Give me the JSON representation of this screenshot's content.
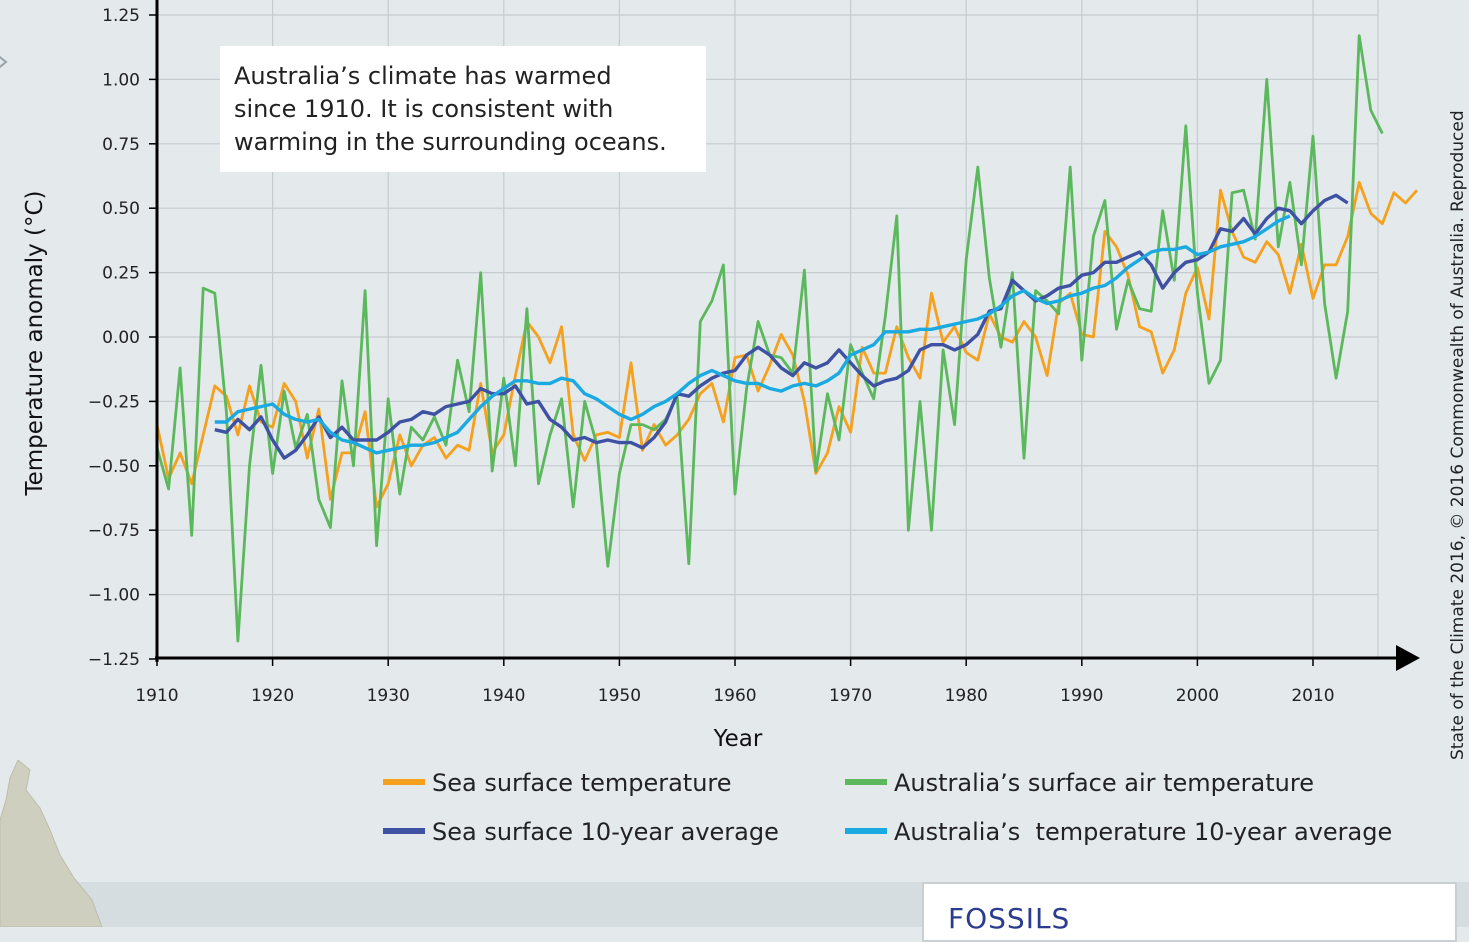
{
  "chart_data": {
    "type": "line",
    "title": "",
    "xlabel": "Year",
    "ylabel": "Temperature anomaly (°C)",
    "xlim": [
      1910,
      2016
    ],
    "ylim": [
      -1.25,
      1.25
    ],
    "x_ticks": [
      1910,
      1920,
      1930,
      1940,
      1950,
      1960,
      1970,
      1980,
      1990,
      2000,
      2010
    ],
    "y_ticks": [
      -1.25,
      -1.0,
      -0.75,
      -0.5,
      -0.25,
      0.0,
      0.25,
      0.5,
      0.75,
      1.0,
      1.25
    ],
    "y_tick_labels": [
      "−1.25",
      "−1.00",
      "−0.75",
      "−0.50",
      "−0.25",
      "0.00",
      "0.25",
      "0.50",
      "0.75",
      "1.00",
      "1.25"
    ],
    "grid": true,
    "legend_position": "bottom",
    "series": [
      {
        "name": "Sea surface temperature",
        "color": "#f5a11d",
        "x_start": 1910,
        "values": [
          -0.34,
          -0.55,
          -0.45,
          -0.57,
          -0.38,
          -0.19,
          -0.23,
          -0.38,
          -0.19,
          -0.33,
          -0.35,
          -0.18,
          -0.25,
          -0.47,
          -0.28,
          -0.63,
          -0.45,
          -0.45,
          -0.29,
          -0.66,
          -0.57,
          -0.38,
          -0.5,
          -0.42,
          -0.39,
          -0.47,
          -0.42,
          -0.44,
          -0.18,
          -0.45,
          -0.38,
          -0.15,
          0.06,
          0.0,
          -0.1,
          0.04,
          -0.38,
          -0.48,
          -0.38,
          -0.37,
          -0.39,
          -0.1,
          -0.44,
          -0.34,
          -0.42,
          -0.38,
          -0.32,
          -0.22,
          -0.18,
          -0.33,
          -0.08,
          -0.07,
          -0.21,
          -0.11,
          0.01,
          -0.07,
          -0.25,
          -0.53,
          -0.45,
          -0.27,
          -0.37,
          -0.04,
          -0.14,
          -0.14,
          0.04,
          -0.08,
          -0.16,
          0.17,
          -0.02,
          0.04,
          -0.06,
          -0.09,
          0.09,
          0.0,
          -0.02,
          0.06,
          0.0,
          -0.15,
          0.13,
          0.17,
          0.01,
          0.0,
          0.41,
          0.35,
          0.24,
          0.04,
          0.02,
          -0.14,
          -0.05,
          0.17,
          0.27,
          0.07,
          0.57,
          0.41,
          0.31,
          0.29,
          0.37,
          0.32,
          0.17,
          0.36,
          0.15,
          0.28,
          0.28,
          0.39,
          0.6,
          0.48,
          0.44,
          0.56,
          0.52,
          0.57
        ]
      },
      {
        "name": "Australia’s surface air temperature",
        "color": "#5cb85c",
        "x_start": 1910,
        "values": [
          -0.43,
          -0.59,
          -0.12,
          -0.77,
          0.19,
          0.17,
          -0.29,
          -1.18,
          -0.5,
          -0.11,
          -0.53,
          -0.21,
          -0.43,
          -0.3,
          -0.63,
          -0.74,
          -0.17,
          -0.5,
          0.18,
          -0.81,
          -0.24,
          -0.61,
          -0.35,
          -0.4,
          -0.31,
          -0.42,
          -0.09,
          -0.29,
          0.25,
          -0.52,
          -0.16,
          -0.5,
          0.11,
          -0.57,
          -0.38,
          -0.24,
          -0.66,
          -0.25,
          -0.41,
          -0.89,
          -0.53,
          -0.34,
          -0.34,
          -0.36,
          -0.32,
          -0.23,
          -0.88,
          0.06,
          0.14,
          0.28,
          -0.61,
          -0.2,
          0.06,
          -0.07,
          -0.08,
          -0.14,
          0.26,
          -0.52,
          -0.22,
          -0.4,
          -0.03,
          -0.14,
          -0.24,
          0.08,
          0.47,
          -0.75,
          -0.25,
          -0.75,
          -0.05,
          -0.34,
          0.3,
          0.66,
          0.23,
          -0.04,
          0.25,
          -0.47,
          0.18,
          0.14,
          0.09,
          0.66,
          -0.09,
          0.39,
          0.53,
          0.03,
          0.22,
          0.11,
          0.1,
          0.49,
          0.22,
          0.82,
          0.17,
          -0.18,
          -0.09,
          0.56,
          0.57,
          0.38,
          1.0,
          0.35,
          0.6,
          0.28,
          0.78,
          0.13,
          -0.16,
          0.1,
          1.17,
          0.88,
          0.79
        ]
      },
      {
        "name": "Sea surface 10-year average",
        "color": "#3f51a3",
        "x_start": 1915,
        "values": [
          -0.36,
          -0.37,
          -0.32,
          -0.36,
          -0.31,
          -0.4,
          -0.47,
          -0.44,
          -0.38,
          -0.31,
          -0.39,
          -0.35,
          -0.4,
          -0.4,
          -0.4,
          -0.37,
          -0.33,
          -0.32,
          -0.29,
          -0.3,
          -0.27,
          -0.26,
          -0.25,
          -0.2,
          -0.22,
          -0.22,
          -0.19,
          -0.26,
          -0.25,
          -0.32,
          -0.35,
          -0.4,
          -0.39,
          -0.41,
          -0.4,
          -0.41,
          -0.41,
          -0.43,
          -0.39,
          -0.33,
          -0.22,
          -0.23,
          -0.19,
          -0.16,
          -0.14,
          -0.13,
          -0.07,
          -0.04,
          -0.07,
          -0.12,
          -0.15,
          -0.1,
          -0.12,
          -0.1,
          -0.05,
          -0.1,
          -0.15,
          -0.19,
          -0.17,
          -0.16,
          -0.13,
          -0.05,
          -0.03,
          -0.03,
          -0.05,
          -0.03,
          0.01,
          0.1,
          0.11,
          0.22,
          0.18,
          0.14,
          0.16,
          0.19,
          0.2,
          0.24,
          0.25,
          0.29,
          0.29,
          0.31,
          0.33,
          0.28,
          0.19,
          0.25,
          0.29,
          0.3,
          0.33,
          0.42,
          0.41,
          0.46,
          0.4,
          0.46,
          0.5,
          0.49,
          0.44,
          0.49,
          0.53,
          0.55,
          0.52
        ]
      },
      {
        "name": "Australia’s  temperature 10-year average",
        "color": "#1ba9e1",
        "x_start": 1915,
        "values": [
          -0.33,
          -0.33,
          -0.29,
          -0.28,
          -0.27,
          -0.26,
          -0.3,
          -0.32,
          -0.33,
          -0.32,
          -0.37,
          -0.4,
          -0.41,
          -0.43,
          -0.45,
          -0.44,
          -0.43,
          -0.42,
          -0.42,
          -0.41,
          -0.39,
          -0.37,
          -0.32,
          -0.27,
          -0.23,
          -0.2,
          -0.17,
          -0.17,
          -0.18,
          -0.18,
          -0.16,
          -0.17,
          -0.22,
          -0.24,
          -0.27,
          -0.3,
          -0.32,
          -0.3,
          -0.27,
          -0.25,
          -0.22,
          -0.18,
          -0.15,
          -0.13,
          -0.15,
          -0.17,
          -0.18,
          -0.18,
          -0.2,
          -0.21,
          -0.19,
          -0.18,
          -0.19,
          -0.17,
          -0.14,
          -0.07,
          -0.05,
          -0.03,
          0.02,
          0.02,
          0.02,
          0.03,
          0.03,
          0.04,
          0.05,
          0.06,
          0.07,
          0.09,
          0.12,
          0.16,
          0.18,
          0.15,
          0.13,
          0.14,
          0.16,
          0.17,
          0.19,
          0.2,
          0.23,
          0.27,
          0.3,
          0.33,
          0.34,
          0.34,
          0.35,
          0.32,
          0.33,
          0.35,
          0.36,
          0.37,
          0.39,
          0.42,
          0.45,
          0.47
        ]
      }
    ],
    "annotations": [
      "Australia’s climate has warmed",
      "since 1910. It is consistent with",
      "warming in the surrounding oceans."
    ]
  },
  "credit": "State of the Climate 2016, © 2016 Commonwealth of Australia. Reproduced",
  "next_section_title": "FOSSILS"
}
